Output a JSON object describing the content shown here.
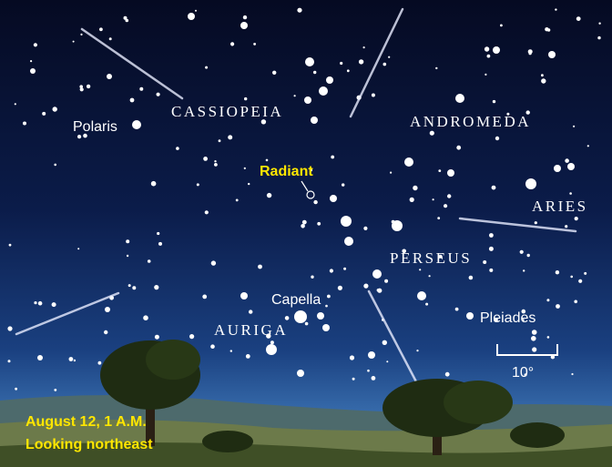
{
  "labels": {
    "cassiopeia": "CASSIOPEIA",
    "andromeda": "ANDROMEDA",
    "polaris": "Polaris",
    "radiant": "Radiant",
    "aries": "ARIES",
    "perseus": "PERSEUS",
    "capella": "Capella",
    "auriga": "AURIGA",
    "pleiades": "Pleiades",
    "scale": "10°"
  },
  "caption": {
    "date": "August 12, 1 A.M.",
    "direction": "Looking northeast"
  }
}
